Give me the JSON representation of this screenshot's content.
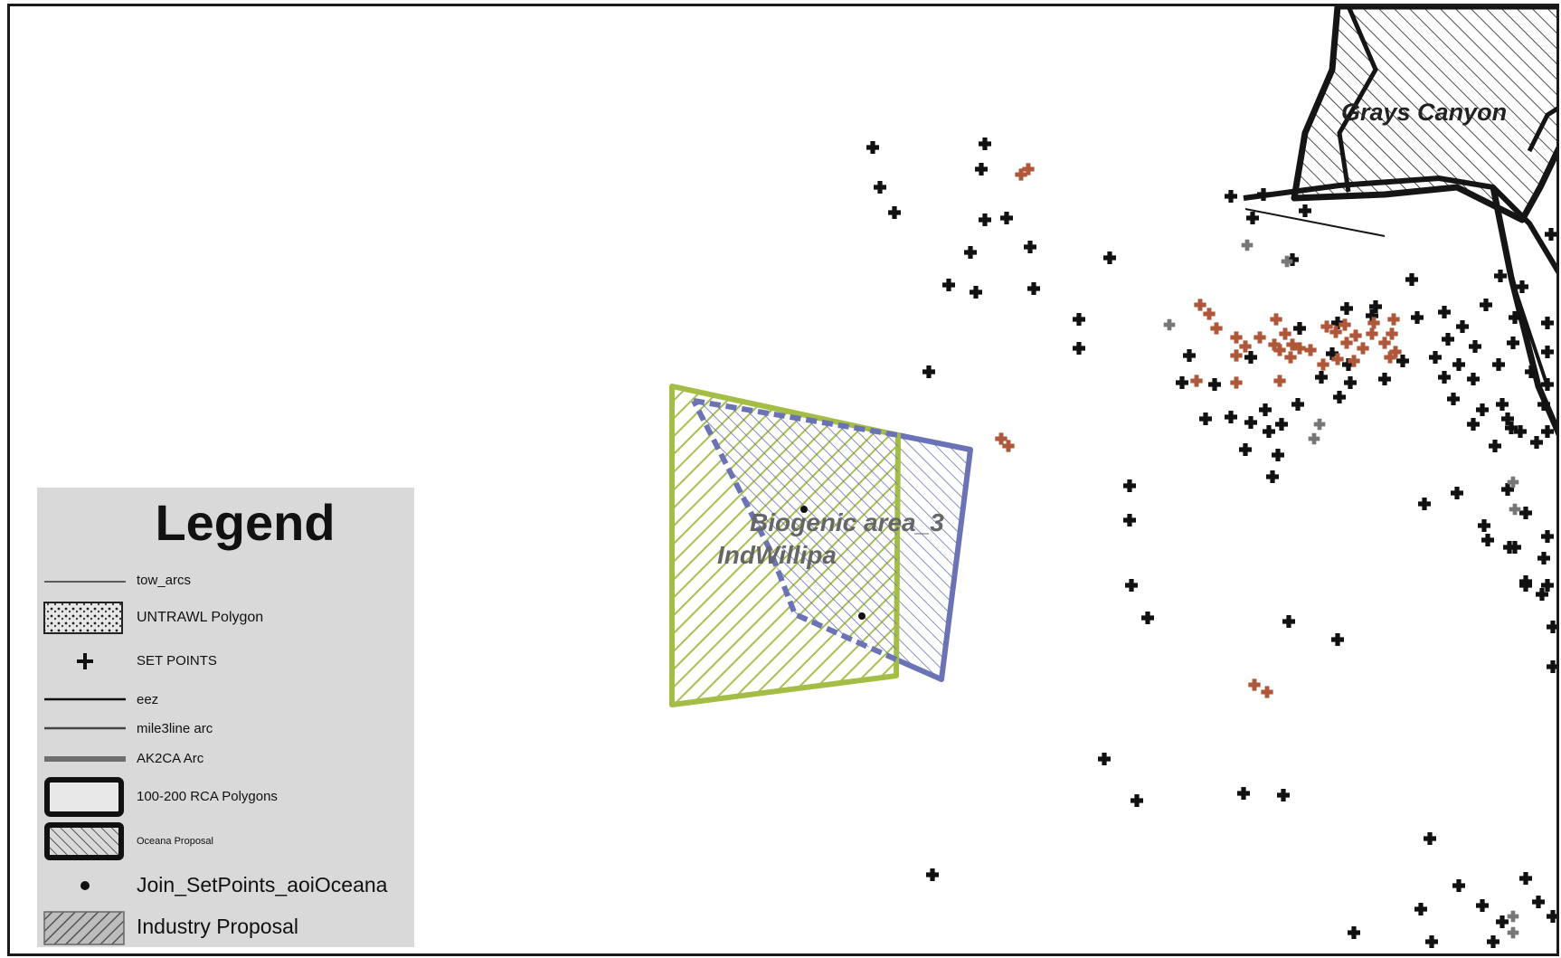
{
  "map": {
    "labels": {
      "grays_canyon": "Grays Canyon",
      "biogenic_area": "Biogenic area_3",
      "indwillipa": "IndWillipa"
    },
    "colors": {
      "industry_proposal": "#a4bd45",
      "oceana_proposal": "#6a73b8",
      "set_points": "#111111",
      "highlight_points": "#b0573a",
      "gray_points": "#777777"
    }
  },
  "legend": {
    "title": "Legend",
    "items": [
      {
        "label": "tow_arcs",
        "symbol": "thin-line"
      },
      {
        "label": "UNTRAWL Polygon",
        "symbol": "stipple-box"
      },
      {
        "label": "SET POINTS",
        "symbol": "plus-marker"
      },
      {
        "label": "eez",
        "symbol": "line"
      },
      {
        "label": "mile3line arc",
        "symbol": "line"
      },
      {
        "label": "AK2CA Arc",
        "symbol": "thick-gray-line"
      },
      {
        "label": "100-200 RCA Polygons",
        "symbol": "thick-box"
      },
      {
        "label": "Oceana Proposal",
        "symbol": "hatched-box"
      },
      {
        "label": "Join_SetPoints_aoiOceana",
        "symbol": "dot"
      },
      {
        "label": "Industry Proposal",
        "symbol": "diagonal-hatch-box"
      }
    ]
  }
}
